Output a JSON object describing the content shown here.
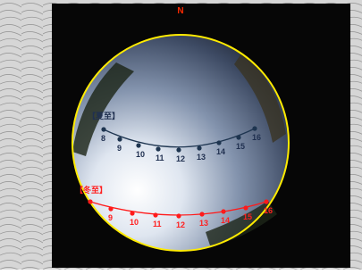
{
  "compass": "N",
  "summer": {
    "label": "【夏至】",
    "hours": [
      8,
      9,
      10,
      11,
      12,
      13,
      14,
      15,
      16
    ]
  },
  "winter": {
    "label": "【冬至】",
    "hours": [
      9,
      10,
      11,
      12,
      13,
      14,
      15,
      16
    ]
  }
}
